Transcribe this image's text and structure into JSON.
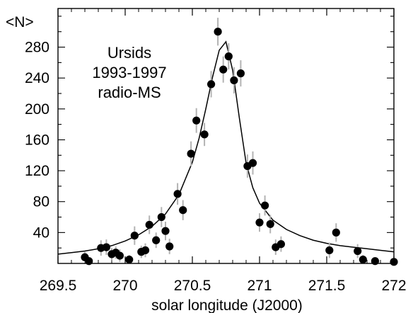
{
  "chart_data": {
    "type": "scatter",
    "ylabel": "<N>",
    "xlabel": "solar  longitude    (J2000)",
    "annotation_lines": [
      "Ursids",
      "1993-1997",
      "radio-MS"
    ],
    "xlim": [
      269.5,
      272.0
    ],
    "ylim": [
      0,
      330
    ],
    "x_ticks": [
      269.5,
      270,
      270.5,
      271,
      271.5,
      272
    ],
    "x_tick_labels": [
      "269.5",
      "270",
      "270.5",
      "271",
      "271.5",
      "272"
    ],
    "y_ticks": [
      40,
      80,
      120,
      160,
      200,
      240,
      280
    ],
    "y_tick_labels": [
      "40",
      "80",
      "120",
      "160",
      "200",
      "240",
      "280"
    ],
    "grid": false,
    "series": [
      {
        "kind": "points_with_error_bars",
        "points": [
          {
            "x": 269.7,
            "y": 8,
            "err": 7
          },
          {
            "x": 269.73,
            "y": 3,
            "err": 5
          },
          {
            "x": 269.82,
            "y": 20,
            "err": 10
          },
          {
            "x": 269.86,
            "y": 21,
            "err": 10
          },
          {
            "x": 269.9,
            "y": 12,
            "err": 8
          },
          {
            "x": 269.93,
            "y": 14,
            "err": 8
          },
          {
            "x": 269.96,
            "y": 10,
            "err": 8
          },
          {
            "x": 270.03,
            "y": 5,
            "err": 6
          },
          {
            "x": 270.07,
            "y": 36,
            "err": 12
          },
          {
            "x": 270.12,
            "y": 15,
            "err": 8
          },
          {
            "x": 270.15,
            "y": 17,
            "err": 9
          },
          {
            "x": 270.18,
            "y": 50,
            "err": 12
          },
          {
            "x": 270.23,
            "y": 30,
            "err": 10
          },
          {
            "x": 270.27,
            "y": 60,
            "err": 13
          },
          {
            "x": 270.3,
            "y": 42,
            "err": 12
          },
          {
            "x": 270.33,
            "y": 22,
            "err": 10
          },
          {
            "x": 270.39,
            "y": 90,
            "err": 14
          },
          {
            "x": 270.43,
            "y": 69,
            "err": 13
          },
          {
            "x": 270.49,
            "y": 142,
            "err": 16
          },
          {
            "x": 270.53,
            "y": 185,
            "err": 16
          },
          {
            "x": 270.59,
            "y": 167,
            "err": 15
          },
          {
            "x": 270.64,
            "y": 232,
            "err": 17
          },
          {
            "x": 270.69,
            "y": 300,
            "err": 18
          },
          {
            "x": 270.73,
            "y": 251,
            "err": 17
          },
          {
            "x": 270.77,
            "y": 268,
            "err": 17
          },
          {
            "x": 270.81,
            "y": 237,
            "err": 17
          },
          {
            "x": 270.86,
            "y": 246,
            "err": 17
          },
          {
            "x": 270.91,
            "y": 126,
            "err": 15
          },
          {
            "x": 270.95,
            "y": 130,
            "err": 15
          },
          {
            "x": 271.0,
            "y": 53,
            "err": 12
          },
          {
            "x": 271.04,
            "y": 75,
            "err": 13
          },
          {
            "x": 271.08,
            "y": 51,
            "err": 12
          },
          {
            "x": 271.12,
            "y": 21,
            "err": 10
          },
          {
            "x": 271.16,
            "y": 25,
            "err": 10
          },
          {
            "x": 271.52,
            "y": 17,
            "err": 10
          },
          {
            "x": 271.57,
            "y": 40,
            "err": 12
          },
          {
            "x": 271.73,
            "y": 16,
            "err": 9
          },
          {
            "x": 271.77,
            "y": 5,
            "err": 6
          },
          {
            "x": 271.86,
            "y": 3,
            "err": 5
          },
          {
            "x": 272.0,
            "y": 2,
            "err": 5
          }
        ]
      },
      {
        "kind": "fit_curve",
        "x": [
          269.5,
          269.6,
          269.7,
          269.8,
          269.9,
          270.0,
          270.1,
          270.2,
          270.3,
          270.4,
          270.5,
          270.55,
          270.6,
          270.65,
          270.7,
          270.75,
          270.8,
          270.85,
          270.9,
          270.95,
          271.0,
          271.1,
          271.2,
          271.3,
          271.4,
          271.5,
          271.6,
          271.7,
          271.8,
          271.9,
          272.0
        ],
        "y": [
          12,
          14,
          16,
          19,
          23,
          29,
          37,
          48,
          64,
          89,
          131,
          162,
          200,
          241,
          276,
          287,
          250,
          188,
          130,
          98,
          78,
          56,
          44,
          36,
          30,
          26,
          23,
          21,
          19,
          17,
          15
        ]
      }
    ],
    "colors": {
      "points": "#000000",
      "error_bars": "#b3b3b3",
      "curve": "#000000",
      "axes": "#000000"
    }
  }
}
